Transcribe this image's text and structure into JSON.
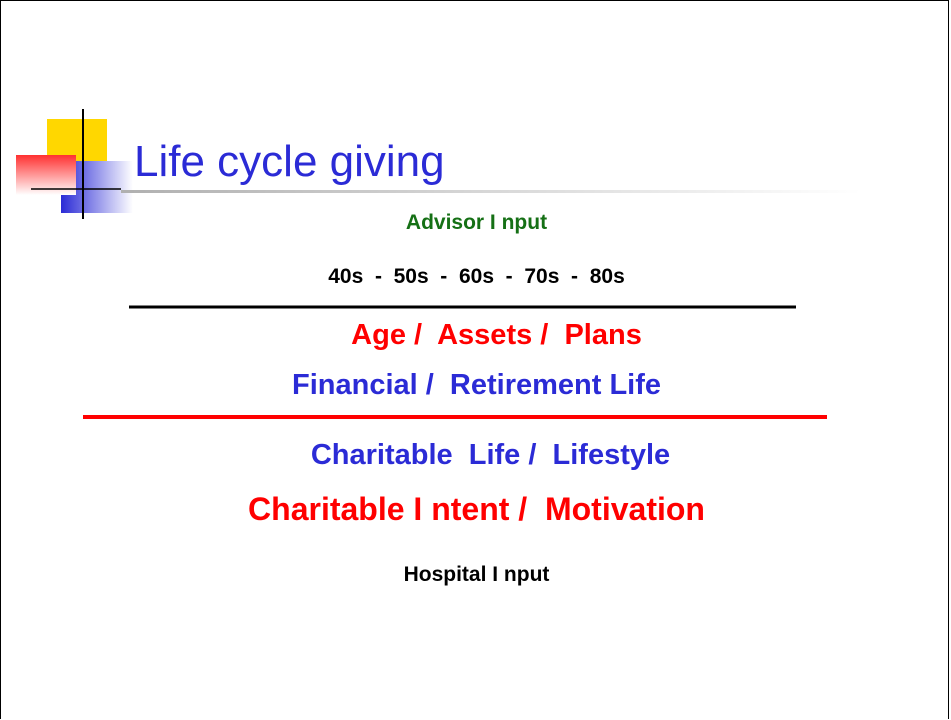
{
  "title": "Life cycle giving",
  "lines": [
    "Advisor I nput",
    "40s  -  50s  -  60s  -  70s  -  80s",
    "Age /  Assets /  Plans",
    "Financial /  Retirement Life",
    "Charitable  Life /  Lifestyle",
    "Charitable I ntent /  Motivation",
    "Hospital I nput"
  ]
}
